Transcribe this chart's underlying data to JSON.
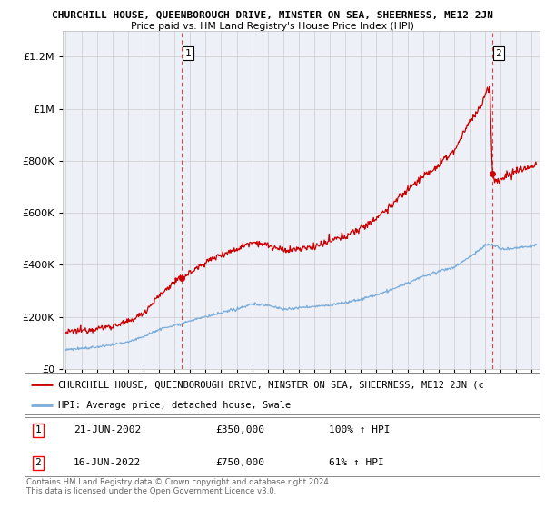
{
  "title": "CHURCHILL HOUSE, QUEENBOROUGH DRIVE, MINSTER ON SEA, SHEERNESS, ME12 2JN",
  "subtitle": "Price paid vs. HM Land Registry's House Price Index (HPI)",
  "legend_label_red": "CHURCHILL HOUSE, QUEENBOROUGH DRIVE, MINSTER ON SEA, SHEERNESS, ME12 2JN (c",
  "legend_label_blue": "HPI: Average price, detached house, Swale",
  "footnote1": "Contains HM Land Registry data © Crown copyright and database right 2024.",
  "footnote2": "This data is licensed under the Open Government Licence v3.0.",
  "annotation1_label": "1",
  "annotation1_date": "21-JUN-2002",
  "annotation1_price": "£350,000",
  "annotation1_hpi": "100% ↑ HPI",
  "annotation2_label": "2",
  "annotation2_date": "16-JUN-2022",
  "annotation2_price": "£750,000",
  "annotation2_hpi": "61% ↑ HPI",
  "dashed_line1_x": 2002.47,
  "dashed_line2_x": 2022.46,
  "point1_x": 2002.47,
  "point1_y": 350000,
  "point2_x": 2022.46,
  "point2_y": 750000,
  "ylim": [
    0,
    1300000
  ],
  "xlim_start": 1994.8,
  "xlim_end": 2025.5,
  "red_color": "#cc0000",
  "blue_color": "#7aaddb",
  "background_color": "#ffffff",
  "grid_color": "#cccccc",
  "plot_bg_color": "#eef0f8"
}
